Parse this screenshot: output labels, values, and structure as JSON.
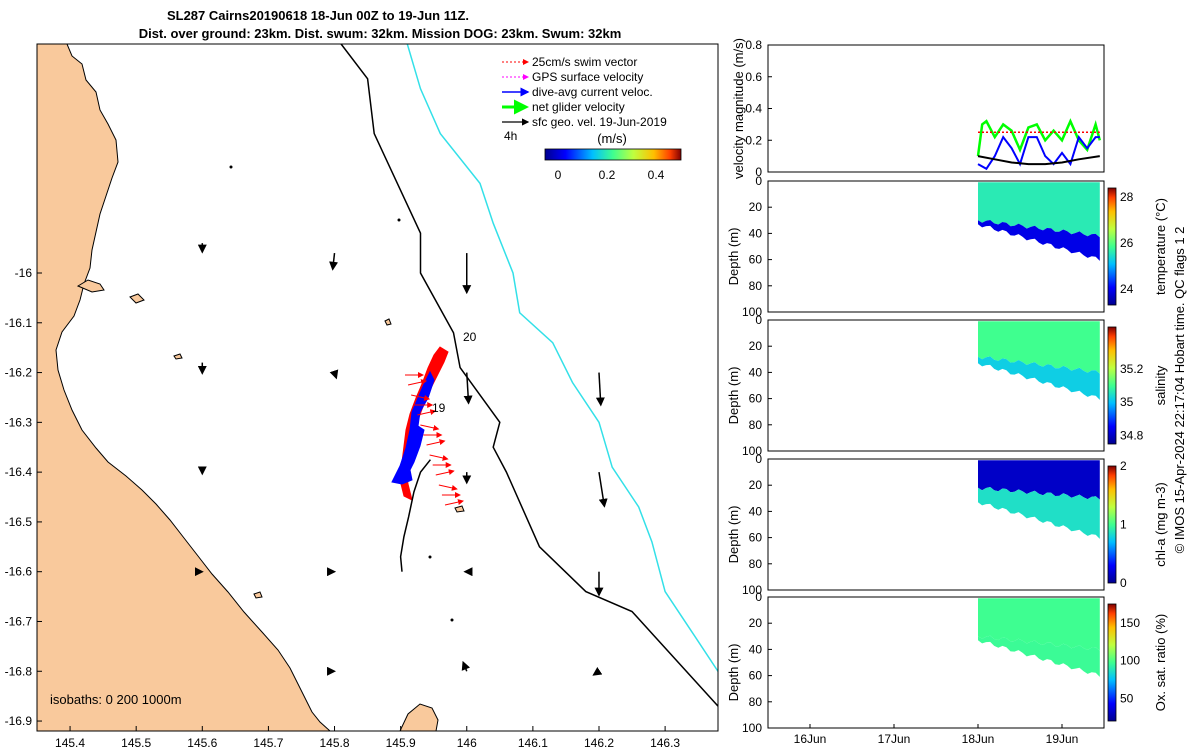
{
  "title_line1": "SL287 Cairns20190618 18-Jun 00Z to 19-Jun 11Z.",
  "title_line2": "Dist. over ground: 23km. Dist. swum: 32km. Mission DOG: 23km. Swum: 32km",
  "side_credit": "© IMOS 15-Apr-2024 22:17:04 Hobart time. QC flags 1  2",
  "colors": {
    "land": "#f9c99c",
    "track": "#000000",
    "isobath_deep": "#33e0e8",
    "swim": "#ff0000",
    "dac": "#0000ff",
    "net": "#00ff00",
    "gps": "#ff00ff"
  },
  "chart_data": [
    {
      "type": "map",
      "xlim": [
        145.35,
        146.38
      ],
      "ylim": [
        -16.92,
        -15.54
      ],
      "xticks": [
        145.4,
        145.5,
        145.6,
        145.7,
        145.8,
        145.9,
        146,
        146.1,
        146.2,
        146.3
      ],
      "xtick_labels": [
        "145.4",
        "145.5",
        "145.6",
        "145.7",
        "145.8",
        "145.9",
        "146",
        "146.1",
        "146.2",
        "146.3"
      ],
      "yticks": [
        -16,
        -16.1,
        -16.2,
        -16.3,
        -16.4,
        -16.5,
        -16.6,
        -16.7,
        -16.8,
        -16.9
      ],
      "ytick_labels": [
        "-16",
        "-16.1",
        "-16.2",
        "-16.3",
        "-16.4",
        "-16.5",
        "-16.6",
        "-16.7",
        "-16.8",
        "-16.9"
      ],
      "legend": {
        "position": "top-right",
        "items": [
          {
            "label": "25cm/s swim vector",
            "color": "#ff0000",
            "style": "dotted-arrow"
          },
          {
            "label": "GPS surface velocity",
            "color": "#ff00ff",
            "style": "dotted-arrow"
          },
          {
            "label": "dive-avg current veloc.",
            "color": "#0000ff",
            "style": "arrow"
          },
          {
            "label": "net glider velocity",
            "color": "#00ff00",
            "style": "thick-arrow"
          },
          {
            "label": "sfc geo. vel. 19-Jun-2019",
            "color": "#000000",
            "style": "arrow"
          }
        ],
        "time_label": "4h",
        "colorbar_unit": "(m/s)",
        "colorbar_ticks": [
          "0",
          "0.2",
          "0.4"
        ],
        "colorbar_range": [
          -0.05,
          0.5
        ]
      },
      "isobath_label": "isobaths: 0   200  1000m",
      "isobath_200_labels": [
        "20",
        "19"
      ],
      "track_lonlat": [
        [
          145.945,
          -16.375
        ],
        [
          145.93,
          -16.4
        ],
        [
          145.92,
          -16.44
        ],
        [
          145.912,
          -16.49
        ],
        [
          145.905,
          -16.53
        ],
        [
          145.9,
          -16.57
        ],
        [
          145.902,
          -16.6
        ]
      ],
      "isobath_200": [
        [
          145.81,
          -15.54
        ],
        [
          145.85,
          -15.61
        ],
        [
          145.86,
          -15.72
        ],
        [
          145.93,
          -15.92
        ],
        [
          145.93,
          -16.0
        ],
        [
          145.98,
          -16.12
        ],
        [
          145.99,
          -16.19
        ],
        [
          146.05,
          -16.3
        ],
        [
          146.04,
          -16.35
        ],
        [
          146.06,
          -16.4
        ],
        [
          146.11,
          -16.55
        ],
        [
          146.18,
          -16.64
        ],
        [
          146.25,
          -16.68
        ],
        [
          146.38,
          -16.87
        ]
      ],
      "isobath_1000": [
        [
          145.91,
          -15.54
        ],
        [
          145.93,
          -15.63
        ],
        [
          145.96,
          -15.72
        ],
        [
          146.02,
          -15.82
        ],
        [
          146.04,
          -15.9
        ],
        [
          146.07,
          -16.0
        ],
        [
          146.08,
          -16.08
        ],
        [
          146.13,
          -16.14
        ],
        [
          146.16,
          -16.22
        ],
        [
          146.2,
          -16.3
        ],
        [
          146.22,
          -16.39
        ],
        [
          146.26,
          -16.47
        ],
        [
          146.28,
          -16.54
        ],
        [
          146.3,
          -16.64
        ],
        [
          146.34,
          -16.72
        ],
        [
          146.38,
          -16.8
        ]
      ],
      "geo_vectors": [
        {
          "lon": 145.6,
          "lat": -15.94,
          "u": 0.0,
          "v": -0.05
        },
        {
          "lon": 145.8,
          "lat": -15.96,
          "u": -0.01,
          "v": -0.09
        },
        {
          "lon": 146.0,
          "lat": -15.96,
          "u": 0.0,
          "v": -0.22
        },
        {
          "lon": 145.6,
          "lat": -16.18,
          "u": 0.0,
          "v": -0.06
        },
        {
          "lon": 145.8,
          "lat": -16.2,
          "u": 0.01,
          "v": -0.03
        },
        {
          "lon": 146.0,
          "lat": -16.2,
          "u": 0.01,
          "v": -0.17
        },
        {
          "lon": 146.2,
          "lat": -16.2,
          "u": 0.01,
          "v": -0.18
        },
        {
          "lon": 145.6,
          "lat": -16.4,
          "u": 0.0,
          "v": -0.01
        },
        {
          "lon": 146.0,
          "lat": -16.4,
          "u": 0.0,
          "v": -0.06
        },
        {
          "lon": 146.2,
          "lat": -16.4,
          "u": 0.03,
          "v": -0.19
        },
        {
          "lon": 145.6,
          "lat": -16.6,
          "u": 0.0,
          "v": 0.0
        },
        {
          "lon": 145.8,
          "lat": -16.6,
          "u": 0.0,
          "v": 0.0
        },
        {
          "lon": 146.0,
          "lat": -16.6,
          "u": -0.01,
          "v": 0.0
        },
        {
          "lon": 146.2,
          "lat": -16.6,
          "u": 0.0,
          "v": -0.13
        },
        {
          "lon": 145.8,
          "lat": -16.8,
          "u": 0.0,
          "v": 0.0
        },
        {
          "lon": 146.0,
          "lat": -16.8,
          "u": -0.02,
          "v": 0.05
        },
        {
          "lon": 146.2,
          "lat": -16.8,
          "u": -0.03,
          "v": -0.02
        }
      ]
    },
    {
      "type": "line",
      "ylabel": "velocity magnitude (m/s)",
      "ylim": [
        0,
        0.8
      ],
      "yticks": [
        "0",
        "0.2",
        "0.4",
        "0.6",
        "0.8"
      ],
      "xlim": [
        15.5,
        19.5
      ],
      "series": [
        {
          "color": "#00ff00",
          "x": [
            18.0,
            18.05,
            18.1,
            18.2,
            18.3,
            18.4,
            18.5,
            18.6,
            18.7,
            18.8,
            18.9,
            19.0,
            19.1,
            19.2,
            19.3,
            19.4,
            19.45
          ],
          "y": [
            0.1,
            0.3,
            0.32,
            0.22,
            0.3,
            0.26,
            0.14,
            0.28,
            0.3,
            0.2,
            0.26,
            0.2,
            0.32,
            0.2,
            0.14,
            0.3,
            0.2
          ]
        },
        {
          "color": "#ff0000",
          "x": [
            18.0,
            19.45
          ],
          "y": [
            0.25,
            0.25
          ]
        },
        {
          "color": "#0000ff",
          "x": [
            18.0,
            18.1,
            18.2,
            18.3,
            18.4,
            18.5,
            18.6,
            18.7,
            18.8,
            18.9,
            19.0,
            19.1,
            19.2,
            19.3,
            19.4,
            19.45
          ],
          "y": [
            0.05,
            0.02,
            0.1,
            0.22,
            0.15,
            0.05,
            0.22,
            0.22,
            0.1,
            0.05,
            0.12,
            0.05,
            0.22,
            0.15,
            0.22,
            0.22
          ]
        },
        {
          "color": "#000000",
          "x": [
            18.0,
            18.2,
            18.4,
            18.6,
            18.8,
            19.0,
            19.2,
            19.45
          ],
          "y": [
            0.1,
            0.08,
            0.06,
            0.05,
            0.05,
            0.06,
            0.08,
            0.1
          ]
        }
      ]
    },
    {
      "type": "heatmap",
      "ylabel": "Depth (m)",
      "yticks": [
        "0",
        "20",
        "40",
        "60",
        "80",
        "100"
      ],
      "ylim": [
        100,
        0
      ],
      "colorbar_label": "temperature (°C)",
      "colorbar_ticks": [
        "24",
        "26",
        "28"
      ],
      "clim": [
        23.3,
        28.4
      ],
      "surface_value": 25.6,
      "deep_value": 23.9,
      "max_depth_start": 33,
      "max_depth_end": 60,
      "thermocline_start": 30,
      "thermocline_end": 42
    },
    {
      "type": "heatmap",
      "ylabel": "Depth (m)",
      "yticks": [
        "0",
        "20",
        "40",
        "60",
        "80",
        "100"
      ],
      "ylim": [
        100,
        0
      ],
      "colorbar_label": "salinity",
      "colorbar_ticks": [
        "34.8",
        "35",
        "35.2"
      ],
      "clim": [
        34.75,
        35.45
      ],
      "surface_value": 35.1,
      "deep_value": 35.02,
      "max_depth_start": 33,
      "max_depth_end": 60,
      "thermocline_start": 28,
      "thermocline_end": 40
    },
    {
      "type": "heatmap",
      "ylabel": "Depth (m)",
      "yticks": [
        "0",
        "20",
        "40",
        "60",
        "80",
        "100"
      ],
      "ylim": [
        100,
        0
      ],
      "colorbar_label": "chl-a (mg m-3)",
      "colorbar_ticks": [
        "0",
        "1",
        "2"
      ],
      "clim": [
        0,
        2
      ],
      "surface_value": 0.15,
      "deep_value": 0.85,
      "max_depth_start": 33,
      "max_depth_end": 60,
      "thermocline_start": 22,
      "thermocline_end": 30
    },
    {
      "type": "heatmap",
      "ylabel": "Depth (m)",
      "yticks": [
        "0",
        "20",
        "40",
        "60",
        "80",
        "100"
      ],
      "ylim": [
        100,
        0
      ],
      "colorbar_label": "Ox. sat. ratio (%)",
      "colorbar_ticks": [
        "50",
        "100",
        "150"
      ],
      "clim": [
        20,
        175
      ],
      "surface_value": 97,
      "deep_value": 96,
      "max_depth_start": 33,
      "max_depth_end": 60,
      "thermocline_start": 30,
      "thermocline_end": 40,
      "xticks": [
        "16Jun",
        "17Jun",
        "18Jun",
        "19Jun"
      ],
      "xtick_values": [
        16,
        17,
        18,
        19
      ]
    }
  ]
}
